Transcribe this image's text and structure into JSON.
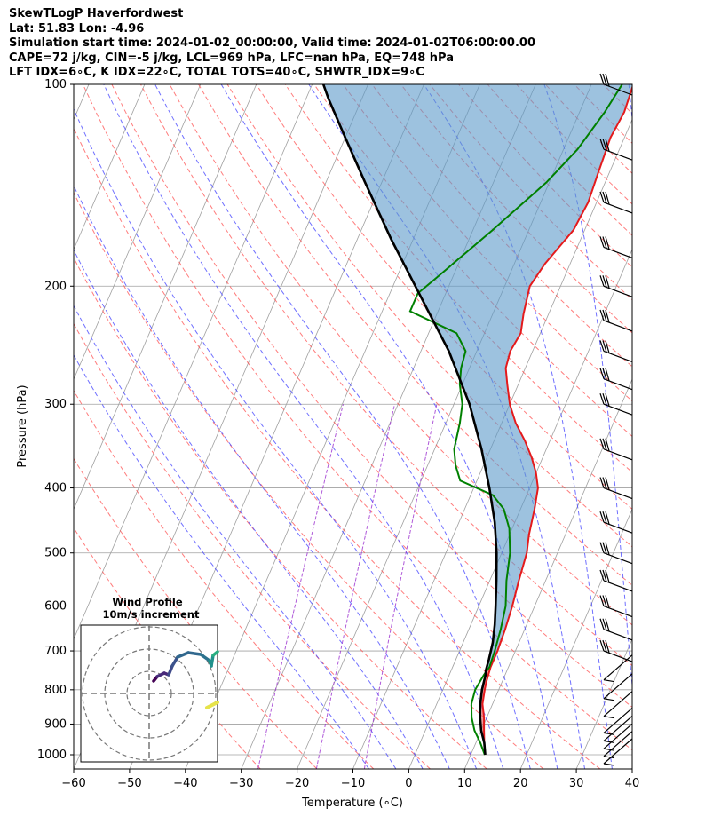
{
  "header": {
    "line1": "SkewTLogP Haverfordwest",
    "line2": "Lat: 51.83   Lon: -4.96",
    "line3": "Simulation start time: 2024-01-02_00:00:00, Valid time: 2024-01-02T06:00:00.00",
    "line4": "CAPE=72 j/kg, CIN=-5 j/kg, LCL=969 hPa, LFC=nan hPa, EQ=748 hPa",
    "line5": "LFT IDX=6∘C, K IDX=22∘C, TOTAL TOTS=40∘C, SHWTR_IDX=9∘C"
  },
  "chart_data": {
    "type": "line",
    "subtype": "skew-T log-P diagram",
    "xlabel": "Temperature (∘C)",
    "ylabel": "Pressure (hPa)",
    "xlim": [
      -60,
      40
    ],
    "ylim": [
      1050,
      100
    ],
    "y_scale": "log",
    "x_ticks": [
      "−60",
      "−50",
      "−40",
      "−30",
      "−20",
      "−10",
      "0",
      "10",
      "20",
      "30",
      "40"
    ],
    "y_ticks": [
      1000,
      900,
      800,
      700,
      600,
      500,
      400,
      300,
      200,
      100
    ],
    "grid": true,
    "colors": {
      "temperature": "#e41a1c",
      "dewpoint": "#008000",
      "parcel": "#000000",
      "cape_fill": "#5b9ac9",
      "cin_fill": "#e05a5a",
      "dry_adiabats": "#ff5050",
      "moist_adiabats": "#4040ff",
      "mixing_ratio": "#9b30d0",
      "isotherms": "#a0a0a0"
    },
    "series": [
      {
        "name": "Temperature",
        "points": [
          [
            12.6,
            1000
          ],
          [
            11.5,
            960
          ],
          [
            10.5,
            920
          ],
          [
            9.5,
            880
          ],
          [
            8.2,
            840
          ],
          [
            7.5,
            800
          ],
          [
            7.2,
            780
          ],
          [
            7.0,
            760
          ],
          [
            6.8,
            740
          ],
          [
            6.8,
            700
          ],
          [
            6.5,
            650
          ],
          [
            6.0,
            600
          ],
          [
            5.2,
            550
          ],
          [
            4.5,
            500
          ],
          [
            3.5,
            470
          ],
          [
            2.5,
            430
          ],
          [
            1.5,
            400
          ],
          [
            0.0,
            380
          ],
          [
            -2.0,
            360
          ],
          [
            -4.5,
            340
          ],
          [
            -7.5,
            320
          ],
          [
            -10.0,
            300
          ],
          [
            -12.0,
            280
          ],
          [
            -13.5,
            265
          ],
          [
            -14.0,
            250
          ],
          [
            -13.5,
            235
          ],
          [
            -14.5,
            220
          ],
          [
            -15.5,
            200
          ],
          [
            -14.5,
            185
          ],
          [
            -12.0,
            165
          ],
          [
            -11.5,
            150
          ],
          [
            -12.0,
            135
          ],
          [
            -12.5,
            120
          ],
          [
            -12.0,
            110
          ],
          [
            -12.5,
            100
          ]
        ]
      },
      {
        "name": "Dewpoint",
        "points": [
          [
            12.5,
            1000
          ],
          [
            10.8,
            960
          ],
          [
            8.8,
            920
          ],
          [
            7.3,
            880
          ],
          [
            6.2,
            840
          ],
          [
            5.8,
            800
          ],
          [
            6.2,
            760
          ],
          [
            6.6,
            740
          ],
          [
            6.3,
            700
          ],
          [
            5.7,
            650
          ],
          [
            4.8,
            600
          ],
          [
            3.0,
            550
          ],
          [
            1.5,
            500
          ],
          [
            -0.5,
            460
          ],
          [
            -3.0,
            430
          ],
          [
            -6.0,
            410
          ],
          [
            -13.0,
            390
          ],
          [
            -15.0,
            370
          ],
          [
            -16.5,
            350
          ],
          [
            -17.5,
            320
          ],
          [
            -18.5,
            300
          ],
          [
            -20.5,
            280
          ],
          [
            -21.5,
            265
          ],
          [
            -22.0,
            250
          ],
          [
            -25.0,
            235
          ],
          [
            -35.0,
            218
          ],
          [
            -35.0,
            205
          ],
          [
            -33.0,
            195
          ],
          [
            -26.5,
            165
          ],
          [
            -20.5,
            140
          ],
          [
            -17.5,
            125
          ],
          [
            -15.5,
            110
          ],
          [
            -14.5,
            100
          ]
        ]
      },
      {
        "name": "Parcel",
        "points": [
          [
            12.6,
            1000
          ],
          [
            11.5,
            960
          ],
          [
            10.0,
            920
          ],
          [
            8.8,
            880
          ],
          [
            7.8,
            840
          ],
          [
            7.0,
            800
          ],
          [
            6.5,
            760
          ],
          [
            6.2,
            748
          ],
          [
            5.9,
            720
          ],
          [
            5.3,
            680
          ],
          [
            4.3,
            640
          ],
          [
            3.0,
            600
          ],
          [
            1.2,
            550
          ],
          [
            -0.9,
            500
          ],
          [
            -3.6,
            450
          ],
          [
            -7.2,
            400
          ],
          [
            -11.6,
            350
          ],
          [
            -17.2,
            300
          ],
          [
            -25.0,
            250
          ],
          [
            -36.0,
            200
          ],
          [
            -44.0,
            170
          ],
          [
            -53.0,
            140
          ],
          [
            -60.0,
            120
          ],
          [
            -66.0,
            105
          ],
          [
            -68.0,
            100
          ]
        ]
      }
    ],
    "wind_barbs": {
      "pressure_levels": [
        1000,
        975,
        950,
        925,
        900,
        850,
        800,
        750,
        700,
        650,
        600,
        550,
        500,
        450,
        400,
        350,
        300,
        275,
        250,
        225,
        200,
        175,
        150,
        125,
        100
      ]
    },
    "inset": {
      "title": "Wind Profile",
      "subtitle": "10m/s increment",
      "rings": 3
    }
  }
}
